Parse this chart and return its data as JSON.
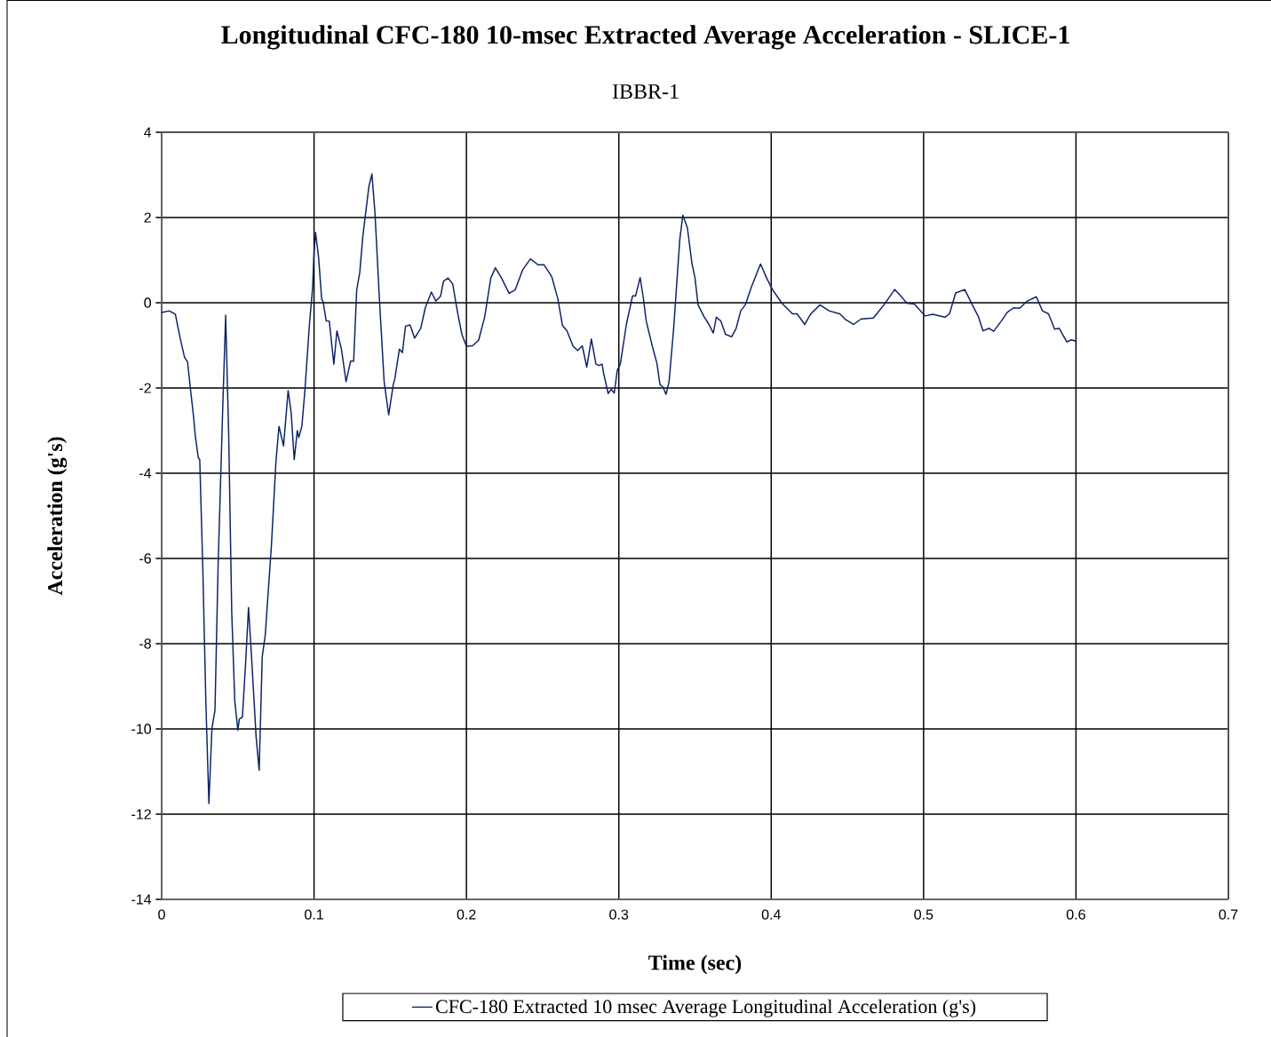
{
  "chart_data": {
    "type": "line",
    "title": "Longitudinal CFC-180 10-msec Extracted Average Acceleration - SLICE-1",
    "subtitle": "IBBR-1",
    "xlabel": "Time (sec)",
    "ylabel": "Acceleration (g's)",
    "xlim": [
      0,
      0.7
    ],
    "ylim": [
      -14,
      4
    ],
    "xticks": [
      0,
      0.1,
      0.2,
      0.3,
      0.4,
      0.5,
      0.6,
      0.7
    ],
    "yticks": [
      -14,
      -12,
      -10,
      -8,
      -6,
      -4,
      -2,
      0,
      2,
      4
    ],
    "grid": true,
    "legend": "bottom",
    "line_style": "solid",
    "series": [
      {
        "name": "CFC-180 Extracted 10 msec Average Longitudinal Acceleration (g's)",
        "color": "#0b2166",
        "x": [
          0,
          0.005,
          0.009,
          0.012,
          0.015,
          0.017,
          0.019,
          0.021,
          0.022,
          0.024,
          0.025,
          0.027,
          0.029,
          0.031,
          0.033,
          0.035,
          0.037,
          0.04,
          0.042,
          0.044,
          0.046,
          0.048,
          0.05,
          0.051,
          0.053,
          0.055,
          0.057,
          0.059,
          0.062,
          0.064,
          0.066,
          0.068,
          0.07,
          0.072,
          0.075,
          0.077,
          0.08,
          0.083,
          0.085,
          0.087,
          0.089,
          0.09,
          0.092,
          0.094,
          0.097,
          0.099,
          0.1,
          0.101,
          0.103,
          0.105,
          0.106,
          0.108,
          0.11,
          0.113,
          0.115,
          0.118,
          0.121,
          0.124,
          0.126,
          0.128,
          0.13,
          0.132,
          0.136,
          0.138,
          0.14,
          0.143,
          0.146,
          0.149,
          0.152,
          0.153,
          0.156,
          0.158,
          0.16,
          0.163,
          0.166,
          0.17,
          0.173,
          0.177,
          0.18,
          0.183,
          0.185,
          0.188,
          0.191,
          0.194,
          0.197,
          0.2,
          0.204,
          0.208,
          0.212,
          0.216,
          0.219,
          0.223,
          0.228,
          0.232,
          0.237,
          0.242,
          0.247,
          0.251,
          0.256,
          0.26,
          0.263,
          0.266,
          0.27,
          0.273,
          0.276,
          0.279,
          0.282,
          0.285,
          0.287,
          0.289,
          0.29,
          0.293,
          0.295,
          0.297,
          0.299,
          0.301,
          0.305,
          0.309,
          0.311,
          0.314,
          0.316,
          0.318,
          0.322,
          0.325,
          0.327,
          0.329,
          0.331,
          0.333,
          0.336,
          0.338,
          0.34,
          0.342,
          0.345,
          0.348,
          0.35,
          0.352,
          0.356,
          0.359,
          0.362,
          0.364,
          0.367,
          0.37,
          0.374,
          0.377,
          0.38,
          0.383,
          0.387,
          0.393,
          0.397,
          0.401,
          0.407,
          0.414,
          0.417,
          0.422,
          0.426,
          0.432,
          0.438,
          0.445,
          0.449,
          0.454,
          0.459,
          0.467,
          0.474,
          0.481,
          0.485,
          0.489,
          0.494,
          0.501,
          0.506,
          0.514,
          0.517,
          0.521,
          0.527,
          0.532,
          0.536,
          0.539,
          0.543,
          0.546,
          0.551,
          0.555,
          0.559,
          0.563,
          0.568,
          0.574,
          0.578,
          0.582,
          0.586,
          0.589,
          0.594,
          0.597,
          0.6
        ],
        "values": [
          -0.23,
          -0.19,
          -0.27,
          -0.81,
          -1.28,
          -1.39,
          -2.06,
          -2.69,
          -3.1,
          -3.63,
          -3.68,
          -6.23,
          -9.35,
          -11.75,
          -9.98,
          -9.56,
          -6.23,
          -2.58,
          -0.29,
          -3.1,
          -7.27,
          -9.35,
          -10.03,
          -9.77,
          -9.72,
          -8.52,
          -7.15,
          -8.31,
          -10.19,
          -10.97,
          -8.31,
          -7.79,
          -6.75,
          -5.71,
          -3.73,
          -2.9,
          -3.36,
          -2.06,
          -2.58,
          -3.68,
          -3.0,
          -3.16,
          -2.9,
          -2.06,
          -0.5,
          0.33,
          1.17,
          1.65,
          1.06,
          0.09,
          0.02,
          -0.43,
          -0.43,
          -1.44,
          -0.66,
          -1.09,
          -1.85,
          -1.37,
          -1.37,
          0.3,
          0.71,
          1.55,
          2.73,
          3.02,
          2.1,
          0.02,
          -1.85,
          -2.63,
          -1.92,
          -1.79,
          -1.09,
          -1.17,
          -0.55,
          -0.52,
          -0.83,
          -0.6,
          -0.12,
          0.25,
          0.04,
          0.15,
          0.51,
          0.58,
          0.44,
          -0.19,
          -0.74,
          -1.02,
          -1.01,
          -0.88,
          -0.33,
          0.58,
          0.82,
          0.58,
          0.22,
          0.3,
          0.78,
          1.03,
          0.89,
          0.89,
          0.61,
          0.09,
          -0.53,
          -0.66,
          -1.02,
          -1.12,
          -1.01,
          -1.51,
          -0.85,
          -1.44,
          -1.47,
          -1.44,
          -1.65,
          -2.13,
          -2.03,
          -2.12,
          -1.58,
          -1.44,
          -0.5,
          0.16,
          0.16,
          0.59,
          0.13,
          -0.43,
          -1.02,
          -1.42,
          -1.92,
          -1.98,
          -2.15,
          -1.85,
          -0.6,
          0.44,
          1.48,
          2.05,
          1.76,
          0.92,
          0.58,
          -0.05,
          -0.33,
          -0.5,
          -0.71,
          -0.34,
          -0.43,
          -0.74,
          -0.8,
          -0.6,
          -0.19,
          -0.05,
          0.37,
          0.91,
          0.58,
          0.3,
          -0.01,
          -0.26,
          -0.26,
          -0.51,
          -0.26,
          -0.05,
          -0.19,
          -0.26,
          -0.4,
          -0.51,
          -0.38,
          -0.36,
          -0.05,
          0.31,
          0.16,
          -0.01,
          -0.03,
          -0.31,
          -0.27,
          -0.34,
          -0.26,
          0.23,
          0.31,
          -0.05,
          -0.33,
          -0.66,
          -0.6,
          -0.67,
          -0.43,
          -0.22,
          -0.12,
          -0.13,
          0.04,
          0.14,
          -0.19,
          -0.26,
          -0.62,
          -0.6,
          -0.92,
          -0.87,
          -0.9
        ]
      }
    ]
  }
}
